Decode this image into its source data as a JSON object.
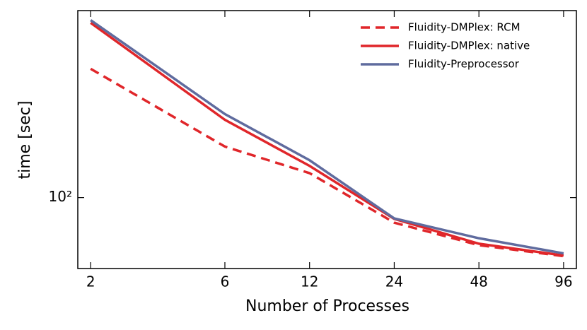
{
  "chart_data": {
    "type": "line",
    "xlabel": "Number of Processes",
    "ylabel": "time [sec]",
    "x": [
      2,
      6,
      12,
      24,
      48,
      96
    ],
    "xscale": "log",
    "yscale": "log",
    "xlim": [
      1.8,
      106.6
    ],
    "ylim": [
      41,
      1050
    ],
    "xticks": [
      2,
      6,
      12,
      24,
      48,
      96
    ],
    "yticks": [
      {
        "value": 100,
        "label": "10²"
      }
    ],
    "legend": "upper right",
    "series": [
      {
        "name": "Fluidity-DMPlex: RCM",
        "color": "#e0262a",
        "linestyle": "dashed",
        "values": [
          505,
          190,
          136,
          73,
          55,
          47.9
        ]
      },
      {
        "name": "Fluidity-DMPlex: native",
        "color": "#e0262a",
        "linestyle": "solid",
        "values": [
          900,
          266,
          149,
          76.5,
          56,
          48.3
        ]
      },
      {
        "name": "Fluidity-Preprocessor",
        "color": "#5f6b9e",
        "linestyle": "solid",
        "values": [
          931,
          286,
          160,
          77,
          60,
          49.6
        ]
      }
    ]
  }
}
